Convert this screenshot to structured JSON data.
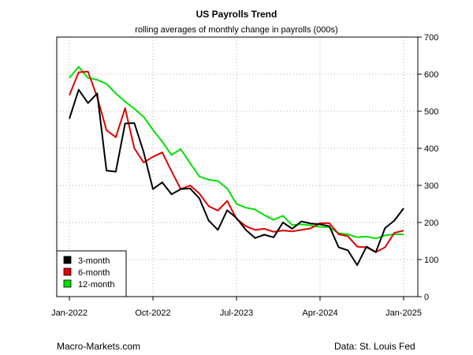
{
  "chart_data": {
    "type": "line",
    "title": "US Payrolls Trend",
    "subtitle": "rolling averages of monthly change in payrolls (000s)",
    "xlabel": "",
    "ylabel": "",
    "x": [
      "2022-01",
      "2022-02",
      "2022-03",
      "2022-04",
      "2022-05",
      "2022-06",
      "2022-07",
      "2022-08",
      "2022-09",
      "2022-10",
      "2022-11",
      "2022-12",
      "2023-01",
      "2023-02",
      "2023-03",
      "2023-04",
      "2023-05",
      "2023-06",
      "2023-07",
      "2023-08",
      "2023-09",
      "2023-10",
      "2023-11",
      "2023-12",
      "2024-01",
      "2024-02",
      "2024-03",
      "2024-04",
      "2024-05",
      "2024-06",
      "2024-07",
      "2024-08",
      "2024-09",
      "2024-10",
      "2024-11",
      "2024-12",
      "2025-01"
    ],
    "x_ticks": [
      "Jan-2022",
      "Oct-2022",
      "Jul-2023",
      "Apr-2024",
      "Jan-2025"
    ],
    "x_tick_positions": [
      "2022-01",
      "2022-10",
      "2023-07",
      "2024-04",
      "2025-01"
    ],
    "ylim": [
      0,
      700
    ],
    "y_ticks": [
      0,
      100,
      200,
      300,
      400,
      500,
      600,
      700
    ],
    "y_axis_side": "right",
    "grid": true,
    "legend_position": "bottom-left",
    "series": [
      {
        "name": "3-month",
        "color": "#000000",
        "values": [
          480,
          558,
          522,
          548,
          340,
          337,
          467,
          468,
          390,
          290,
          308,
          276,
          290,
          292,
          265,
          205,
          180,
          233,
          212,
          180,
          158,
          167,
          160,
          200,
          183,
          203,
          197,
          195,
          190,
          133,
          125,
          85,
          135,
          120,
          185,
          205,
          238
        ]
      },
      {
        "name": "6-month",
        "color": "#e00000",
        "values": [
          543,
          605,
          607,
          538,
          449,
          430,
          508,
          400,
          362,
          377,
          389,
          338,
          290,
          300,
          278,
          244,
          232,
          258,
          210,
          190,
          180,
          183,
          175,
          178,
          176,
          180,
          184,
          198,
          198,
          168,
          163,
          135,
          133,
          120,
          133,
          172,
          178
        ]
      },
      {
        "name": "12-month",
        "color": "#00e000",
        "values": [
          590,
          620,
          590,
          585,
          574,
          548,
          526,
          507,
          485,
          450,
          418,
          382,
          398,
          360,
          324,
          315,
          312,
          292,
          250,
          240,
          235,
          220,
          207,
          218,
          193,
          195,
          192,
          188,
          187,
          171,
          168,
          160,
          162,
          157,
          165,
          168,
          168
        ]
      }
    ]
  },
  "footer": {
    "left": "Macro-Markets.com",
    "right": "Data: St. Louis Fed"
  }
}
